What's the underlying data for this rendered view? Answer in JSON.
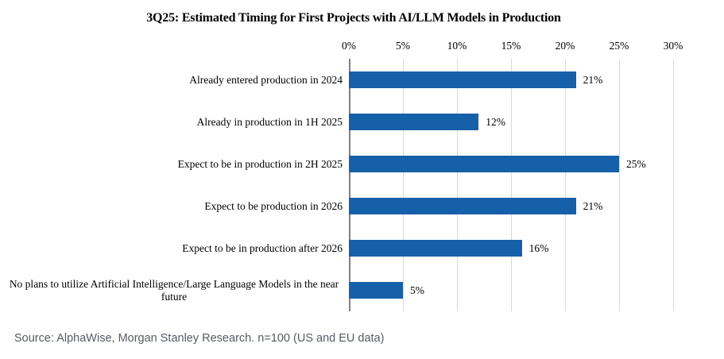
{
  "chart_data": {
    "type": "bar",
    "orientation": "horizontal",
    "title": "3Q25: Estimated Timing for First Projects with AI/LLM Models in Production",
    "categories": [
      "Already entered production in 2024",
      "Already in production in 1H 2025",
      "Expect to be in production in 2H 2025",
      "Expect to be production in 2026",
      "Expect to be in production after 2026",
      "No plans to utilize Artificial Intelligence/Large Language Models in the near future"
    ],
    "values": [
      21,
      12,
      25,
      21,
      16,
      5
    ],
    "value_labels": [
      "21%",
      "12%",
      "25%",
      "21%",
      "16%",
      "5%"
    ],
    "xlabel": "",
    "ylabel": "",
    "xlim": [
      0,
      30
    ],
    "tick_step": 5,
    "tick_labels": [
      "0%",
      "5%",
      "10%",
      "15%",
      "20%",
      "25%",
      "30%"
    ],
    "grid": "vertical",
    "legend": "none",
    "colors": {
      "bar": "#1560A8",
      "gridline": "#D9D9D9",
      "axis_line": "#808080",
      "text": "#000000",
      "source_text": "#565B63"
    }
  },
  "source": "Source: AlphaWise, Morgan Stanley Research. n=100 (US and EU data)"
}
